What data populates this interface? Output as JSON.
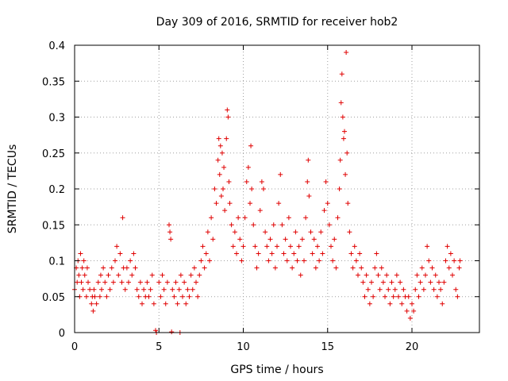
{
  "chart_data": {
    "type": "scatter",
    "title": "Day 309 of 2016, SRMTID for receiver hob2",
    "xlabel": "GPS time / hours",
    "ylabel": "SRMTID / TECUs",
    "xlim": [
      0,
      24
    ],
    "ylim": [
      0,
      0.4
    ],
    "x_ticks": [
      0,
      5,
      10,
      15,
      20
    ],
    "y_ticks": [
      0,
      0.05,
      0.1,
      0.15,
      0.2,
      0.25,
      0.3,
      0.35,
      0.4
    ],
    "x_tick_labels": [
      "0",
      "5",
      "10",
      "15",
      "20"
    ],
    "y_tick_labels": [
      "0",
      "0.05",
      "0.1",
      "0.15",
      "0.2",
      "0.25",
      "0.3",
      "0.35",
      "0.4"
    ],
    "grid": true,
    "marker": "plus",
    "color": "#e00000",
    "series": [
      {
        "name": "SRMTID",
        "points": [
          [
            0.0,
            0.06
          ],
          [
            0.1,
            0.09
          ],
          [
            0.15,
            0.07
          ],
          [
            0.2,
            0.1
          ],
          [
            0.25,
            0.08
          ],
          [
            0.3,
            0.05
          ],
          [
            0.35,
            0.11
          ],
          [
            0.4,
            0.07
          ],
          [
            0.45,
            0.09
          ],
          [
            0.5,
            0.06
          ],
          [
            0.55,
            0.1
          ],
          [
            0.6,
            0.08
          ],
          [
            0.7,
            0.05
          ],
          [
            0.75,
            0.09
          ],
          [
            0.8,
            0.07
          ],
          [
            0.9,
            0.06
          ],
          [
            1.0,
            0.04
          ],
          [
            1.05,
            0.05
          ],
          [
            1.1,
            0.03
          ],
          [
            1.15,
            0.06
          ],
          [
            1.2,
            0.05
          ],
          [
            1.3,
            0.04
          ],
          [
            1.4,
            0.07
          ],
          [
            1.5,
            0.05
          ],
          [
            1.55,
            0.08
          ],
          [
            1.6,
            0.06
          ],
          [
            1.7,
            0.09
          ],
          [
            1.8,
            0.07
          ],
          [
            1.9,
            0.05
          ],
          [
            2.0,
            0.08
          ],
          [
            2.1,
            0.06
          ],
          [
            2.2,
            0.09
          ],
          [
            2.3,
            0.07
          ],
          [
            2.4,
            0.1
          ],
          [
            2.5,
            0.12
          ],
          [
            2.6,
            0.08
          ],
          [
            2.7,
            0.11
          ],
          [
            2.8,
            0.07
          ],
          [
            2.85,
            0.16
          ],
          [
            2.9,
            0.09
          ],
          [
            3.0,
            0.06
          ],
          [
            3.1,
            0.09
          ],
          [
            3.2,
            0.07
          ],
          [
            3.3,
            0.1
          ],
          [
            3.4,
            0.08
          ],
          [
            3.5,
            0.11
          ],
          [
            3.6,
            0.09
          ],
          [
            3.7,
            0.06
          ],
          [
            3.8,
            0.05
          ],
          [
            3.9,
            0.07
          ],
          [
            4.0,
            0.04
          ],
          [
            4.1,
            0.06
          ],
          [
            4.2,
            0.05
          ],
          [
            4.3,
            0.07
          ],
          [
            4.4,
            0.05
          ],
          [
            4.5,
            0.06
          ],
          [
            4.6,
            0.08
          ],
          [
            4.7,
            0.04
          ],
          [
            4.8,
            0.003
          ],
          [
            4.85,
            0.0
          ],
          [
            5.0,
            0.07
          ],
          [
            5.1,
            0.05
          ],
          [
            5.2,
            0.08
          ],
          [
            5.3,
            0.06
          ],
          [
            5.4,
            0.04
          ],
          [
            5.5,
            0.07
          ],
          [
            5.6,
            0.15
          ],
          [
            5.65,
            0.14
          ],
          [
            5.7,
            0.13
          ],
          [
            5.75,
            0.001
          ],
          [
            5.8,
            0.06
          ],
          [
            5.9,
            0.05
          ],
          [
            6.0,
            0.07
          ],
          [
            6.1,
            0.04
          ],
          [
            6.2,
            0.06
          ],
          [
            6.25,
            0.0
          ],
          [
            6.3,
            0.08
          ],
          [
            6.4,
            0.05
          ],
          [
            6.5,
            0.07
          ],
          [
            6.6,
            0.04
          ],
          [
            6.7,
            0.06
          ],
          [
            6.8,
            0.05
          ],
          [
            6.9,
            0.08
          ],
          [
            7.0,
            0.06
          ],
          [
            7.1,
            0.09
          ],
          [
            7.2,
            0.07
          ],
          [
            7.3,
            0.05
          ],
          [
            7.4,
            0.08
          ],
          [
            7.5,
            0.1
          ],
          [
            7.6,
            0.12
          ],
          [
            7.7,
            0.09
          ],
          [
            7.8,
            0.11
          ],
          [
            7.9,
            0.14
          ],
          [
            8.0,
            0.1
          ],
          [
            8.1,
            0.16
          ],
          [
            8.2,
            0.13
          ],
          [
            8.3,
            0.2
          ],
          [
            8.4,
            0.18
          ],
          [
            8.5,
            0.24
          ],
          [
            8.55,
            0.27
          ],
          [
            8.6,
            0.22
          ],
          [
            8.65,
            0.26
          ],
          [
            8.7,
            0.19
          ],
          [
            8.75,
            0.25
          ],
          [
            8.8,
            0.2
          ],
          [
            8.85,
            0.23
          ],
          [
            8.9,
            0.17
          ],
          [
            9.0,
            0.27
          ],
          [
            9.05,
            0.31
          ],
          [
            9.1,
            0.3
          ],
          [
            9.15,
            0.21
          ],
          [
            9.2,
            0.18
          ],
          [
            9.3,
            0.15
          ],
          [
            9.4,
            0.12
          ],
          [
            9.5,
            0.14
          ],
          [
            9.6,
            0.11
          ],
          [
            9.7,
            0.16
          ],
          [
            9.8,
            0.13
          ],
          [
            9.9,
            0.1
          ],
          [
            10.0,
            0.12
          ],
          [
            10.1,
            0.16
          ],
          [
            10.2,
            0.21
          ],
          [
            10.3,
            0.23
          ],
          [
            10.4,
            0.18
          ],
          [
            10.45,
            0.26
          ],
          [
            10.5,
            0.2
          ],
          [
            10.6,
            0.15
          ],
          [
            10.7,
            0.12
          ],
          [
            10.8,
            0.09
          ],
          [
            10.9,
            0.11
          ],
          [
            11.0,
            0.17
          ],
          [
            11.1,
            0.21
          ],
          [
            11.2,
            0.2
          ],
          [
            11.3,
            0.14
          ],
          [
            11.4,
            0.12
          ],
          [
            11.5,
            0.1
          ],
          [
            11.6,
            0.13
          ],
          [
            11.7,
            0.11
          ],
          [
            11.8,
            0.15
          ],
          [
            11.9,
            0.09
          ],
          [
            12.0,
            0.12
          ],
          [
            12.1,
            0.18
          ],
          [
            12.2,
            0.22
          ],
          [
            12.3,
            0.15
          ],
          [
            12.4,
            0.11
          ],
          [
            12.5,
            0.13
          ],
          [
            12.6,
            0.1
          ],
          [
            12.7,
            0.16
          ],
          [
            12.8,
            0.12
          ],
          [
            12.9,
            0.09
          ],
          [
            13.0,
            0.11
          ],
          [
            13.1,
            0.14
          ],
          [
            13.2,
            0.1
          ],
          [
            13.3,
            0.12
          ],
          [
            13.4,
            0.08
          ],
          [
            13.5,
            0.13
          ],
          [
            13.6,
            0.1
          ],
          [
            13.7,
            0.16
          ],
          [
            13.8,
            0.21
          ],
          [
            13.85,
            0.24
          ],
          [
            13.9,
            0.19
          ],
          [
            14.0,
            0.14
          ],
          [
            14.1,
            0.11
          ],
          [
            14.2,
            0.13
          ],
          [
            14.3,
            0.09
          ],
          [
            14.4,
            0.12
          ],
          [
            14.5,
            0.1
          ],
          [
            14.6,
            0.14
          ],
          [
            14.7,
            0.11
          ],
          [
            14.8,
            0.17
          ],
          [
            14.9,
            0.21
          ],
          [
            15.0,
            0.18
          ],
          [
            15.1,
            0.15
          ],
          [
            15.2,
            0.12
          ],
          [
            15.3,
            0.1
          ],
          [
            15.4,
            0.13
          ],
          [
            15.5,
            0.09
          ],
          [
            15.6,
            0.16
          ],
          [
            15.7,
            0.2
          ],
          [
            15.75,
            0.24
          ],
          [
            15.8,
            0.32
          ],
          [
            15.85,
            0.36
          ],
          [
            15.9,
            0.3
          ],
          [
            15.95,
            0.27
          ],
          [
            16.0,
            0.28
          ],
          [
            16.05,
            0.22
          ],
          [
            16.1,
            0.39
          ],
          [
            16.15,
            0.25
          ],
          [
            16.2,
            0.18
          ],
          [
            16.3,
            0.14
          ],
          [
            16.4,
            0.11
          ],
          [
            16.5,
            0.09
          ],
          [
            16.6,
            0.12
          ],
          [
            16.7,
            0.1
          ],
          [
            16.8,
            0.08
          ],
          [
            16.9,
            0.11
          ],
          [
            17.0,
            0.09
          ],
          [
            17.1,
            0.07
          ],
          [
            17.2,
            0.05
          ],
          [
            17.3,
            0.08
          ],
          [
            17.4,
            0.06
          ],
          [
            17.5,
            0.04
          ],
          [
            17.6,
            0.07
          ],
          [
            17.7,
            0.05
          ],
          [
            17.8,
            0.09
          ],
          [
            17.9,
            0.11
          ],
          [
            18.0,
            0.08
          ],
          [
            18.1,
            0.06
          ],
          [
            18.2,
            0.09
          ],
          [
            18.3,
            0.07
          ],
          [
            18.4,
            0.05
          ],
          [
            18.5,
            0.08
          ],
          [
            18.6,
            0.06
          ],
          [
            18.7,
            0.04
          ],
          [
            18.8,
            0.07
          ],
          [
            18.9,
            0.05
          ],
          [
            19.0,
            0.06
          ],
          [
            19.1,
            0.08
          ],
          [
            19.2,
            0.05
          ],
          [
            19.3,
            0.07
          ],
          [
            19.4,
            0.04
          ],
          [
            19.5,
            0.06
          ],
          [
            19.6,
            0.05
          ],
          [
            19.7,
            0.03
          ],
          [
            19.8,
            0.05
          ],
          [
            19.9,
            0.02
          ],
          [
            20.0,
            0.04
          ],
          [
            20.1,
            0.03
          ],
          [
            20.2,
            0.06
          ],
          [
            20.3,
            0.08
          ],
          [
            20.4,
            0.05
          ],
          [
            20.5,
            0.07
          ],
          [
            20.6,
            0.09
          ],
          [
            20.7,
            0.06
          ],
          [
            20.8,
            0.08
          ],
          [
            20.9,
            0.12
          ],
          [
            21.0,
            0.1
          ],
          [
            21.1,
            0.07
          ],
          [
            21.2,
            0.09
          ],
          [
            21.3,
            0.06
          ],
          [
            21.4,
            0.08
          ],
          [
            21.5,
            0.05
          ],
          [
            21.6,
            0.07
          ],
          [
            21.7,
            0.06
          ],
          [
            21.8,
            0.04
          ],
          [
            21.9,
            0.07
          ],
          [
            22.0,
            0.1
          ],
          [
            22.1,
            0.12
          ],
          [
            22.2,
            0.09
          ],
          [
            22.3,
            0.11
          ],
          [
            22.4,
            0.08
          ],
          [
            22.5,
            0.1
          ],
          [
            22.6,
            0.06
          ],
          [
            22.7,
            0.05
          ],
          [
            22.8,
            0.09
          ],
          [
            22.85,
            0.1
          ]
        ]
      }
    ]
  }
}
